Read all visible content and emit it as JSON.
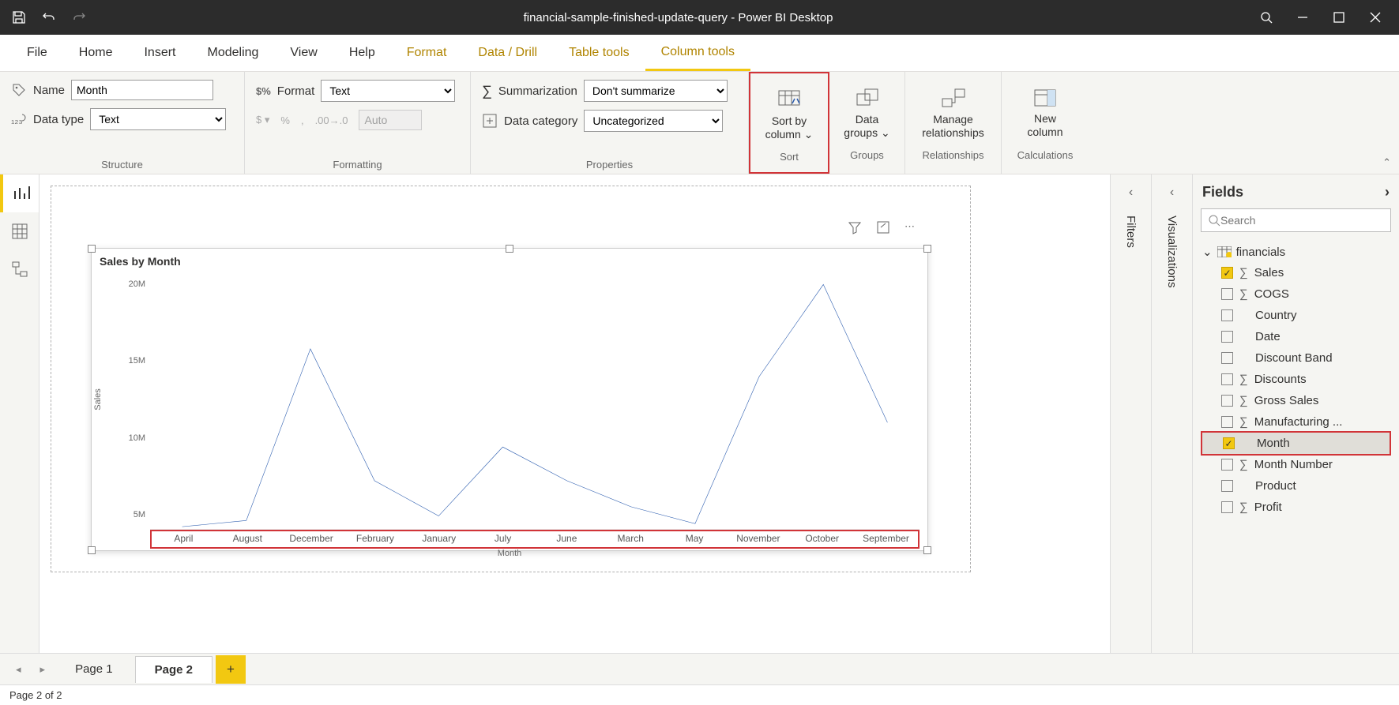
{
  "app": {
    "title": "financial-sample-finished-update-query - Power BI Desktop"
  },
  "menu": {
    "file": "File",
    "home": "Home",
    "insert": "Insert",
    "modeling": "Modeling",
    "view": "View",
    "help": "Help",
    "format": "Format",
    "datadrill": "Data / Drill",
    "tabletools": "Table tools",
    "columntools": "Column tools"
  },
  "ribbon": {
    "structure": {
      "label": "Structure",
      "name_label": "Name",
      "name_value": "Month",
      "datatype_label": "Data type",
      "datatype_value": "Text"
    },
    "formatting": {
      "label": "Formatting",
      "format_label": "Format",
      "format_value": "Text",
      "auto_value": "Auto"
    },
    "properties": {
      "label": "Properties",
      "summarization_label": "Summarization",
      "summarization_value": "Don't summarize",
      "datacategory_label": "Data category",
      "datacategory_value": "Uncategorized"
    },
    "sort": {
      "label": "Sort",
      "button_line1": "Sort by",
      "button_line2": "column"
    },
    "groups": {
      "label": "Groups",
      "button_line1": "Data",
      "button_line2": "groups"
    },
    "relationships": {
      "label": "Relationships",
      "button_line1": "Manage",
      "button_line2": "relationships"
    },
    "calculations": {
      "label": "Calculations",
      "button_line1": "New",
      "button_line2": "column"
    }
  },
  "chart": {
    "type": "line",
    "title": "Sales by Month",
    "y_label": "Sales",
    "x_label": "Month",
    "y_ticks": [
      "5M",
      "10M",
      "15M",
      "20M"
    ],
    "y_tick_values": [
      5,
      10,
      15,
      20
    ],
    "y_domain": [
      4,
      21
    ],
    "x_categories": [
      "April",
      "August",
      "December",
      "February",
      "January",
      "July",
      "June",
      "March",
      "May",
      "November",
      "October",
      "September"
    ],
    "values": [
      4.2,
      4.6,
      15.8,
      7.2,
      4.9,
      9.4,
      7.2,
      5.5,
      4.4,
      14.0,
      20.0,
      11.0
    ],
    "line_color": "#2f5fb0",
    "line_width": 2,
    "axis_color": "#cccccc",
    "text_color": "#555555"
  },
  "panes": {
    "filters": "Filters",
    "visualizations": "Visualizations",
    "fields": {
      "title": "Fields",
      "search_placeholder": "Search",
      "table": "financials",
      "items": [
        {
          "label": " Sales",
          "checked": true,
          "sigma": true
        },
        {
          "label": "COGS",
          "checked": false,
          "sigma": true
        },
        {
          "label": "Country",
          "checked": false,
          "sigma": false
        },
        {
          "label": "Date",
          "checked": false,
          "sigma": false
        },
        {
          "label": "Discount Band",
          "checked": false,
          "sigma": false
        },
        {
          "label": "Discounts",
          "checked": false,
          "sigma": true
        },
        {
          "label": "Gross Sales",
          "checked": false,
          "sigma": true
        },
        {
          "label": "Manufacturing ...",
          "checked": false,
          "sigma": true
        },
        {
          "label": "Month",
          "checked": true,
          "sigma": false,
          "highlighted": true,
          "selected": true
        },
        {
          "label": "Month Number",
          "checked": false,
          "sigma": true
        },
        {
          "label": "Product",
          "checked": false,
          "sigma": false
        },
        {
          "label": "Profit",
          "checked": false,
          "sigma": true
        }
      ]
    }
  },
  "pages": {
    "page1": "Page 1",
    "page2": "Page 2",
    "status": "Page 2 of 2"
  }
}
